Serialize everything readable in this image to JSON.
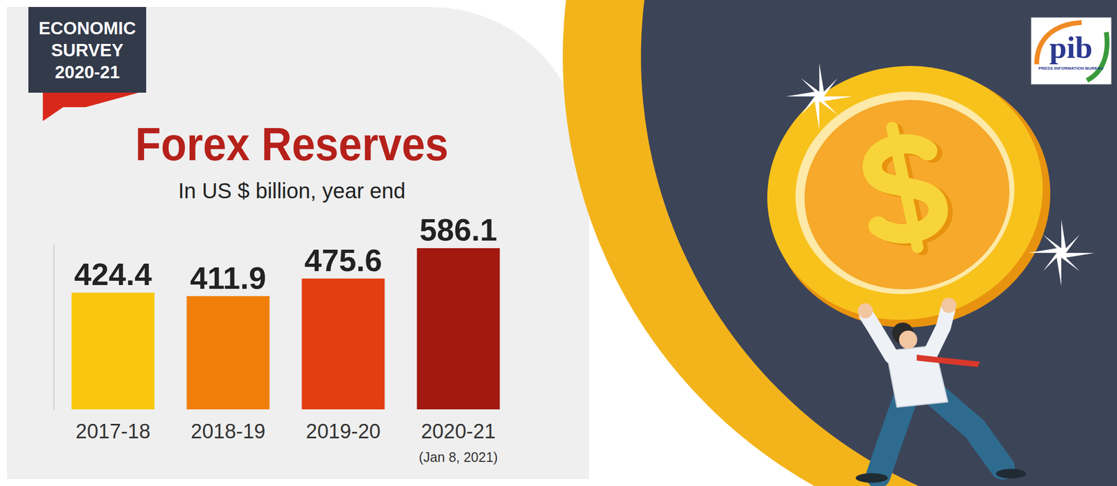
{
  "chart_data": {
    "type": "bar",
    "title": "Forex Reserves",
    "subtitle": "In US $ billion, year end",
    "badge": [
      "ECONOMIC",
      "SURVEY",
      "2020-21"
    ],
    "logo": [
      "pib",
      "PRESS INFORMATION BUREAU"
    ],
    "categories": [
      "2017-18",
      "2018-19",
      "2019-20",
      "2020-21"
    ],
    "values": [
      424.4,
      411.9,
      475.6,
      586.1
    ],
    "colors": [
      "#f9c80e",
      "#f07f09",
      "#e33e12",
      "#a3180f"
    ],
    "annotations": [
      {
        "text": "(Jan 8, 2021)",
        "category": "2020-21"
      }
    ],
    "ylim": [
      0,
      600
    ],
    "yticks": [],
    "data_labels": true,
    "tick_labels": "x",
    "grid": false
  }
}
